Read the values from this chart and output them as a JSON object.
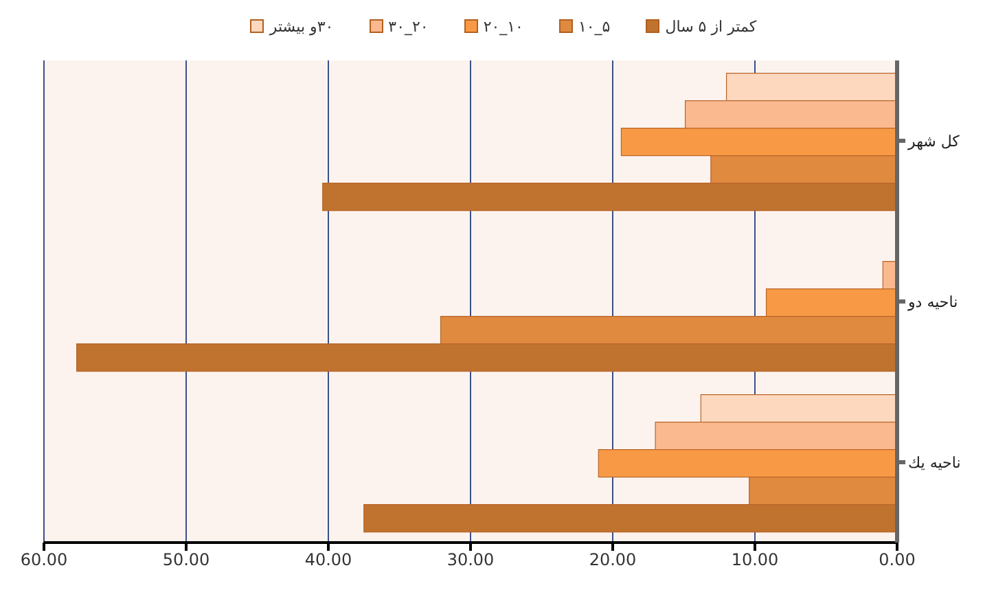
{
  "chart_data": {
    "type": "bar",
    "orientation": "horizontal",
    "categories": [
      "کل شهر",
      "ناحیه دو",
      "ناحیه یك"
    ],
    "series": [
      {
        "name": "۳۰و بیشتر",
        "color": "#fdd8bf",
        "values": [
          12.0,
          0,
          13.8
        ]
      },
      {
        "name": "۲۰_۳۰",
        "color": "#fbb98f",
        "values": [
          14.9,
          1.0,
          17.0
        ]
      },
      {
        "name": "۱۰_۲۰",
        "color": "#f89a45",
        "values": [
          19.4,
          9.2,
          21.0
        ]
      },
      {
        "name": "۵_۱۰",
        "color": "#e08a40",
        "values": [
          13.1,
          32.1,
          10.4
        ]
      },
      {
        "name": "کمتر از ۵ سال",
        "color": "#c0722f",
        "values": [
          40.4,
          57.7,
          37.5
        ]
      }
    ],
    "xlim": [
      60,
      0
    ],
    "xticks": [
      {
        "value": 60,
        "label": "60.00"
      },
      {
        "value": 50,
        "label": "50.00"
      },
      {
        "value": 40,
        "label": "40.00"
      },
      {
        "value": 30,
        "label": "30.00"
      },
      {
        "value": 20,
        "label": "20.00"
      },
      {
        "value": 10,
        "label": "10.00"
      },
      {
        "value": 0,
        "label": "0.00"
      }
    ],
    "grid": "x",
    "legend": "top"
  }
}
